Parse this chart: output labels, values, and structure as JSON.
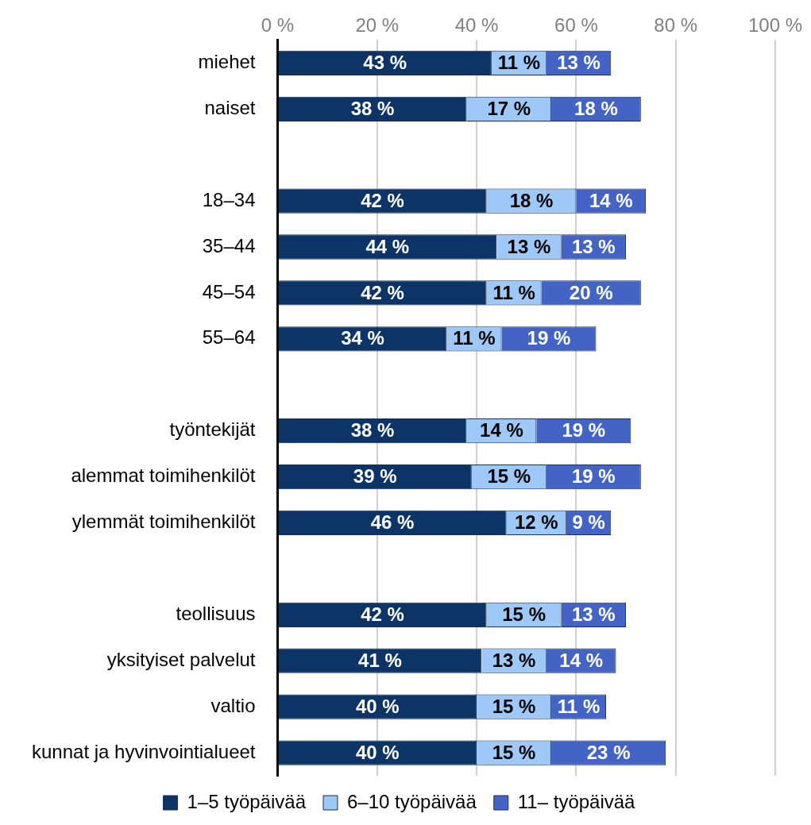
{
  "chart_data": {
    "type": "bar",
    "orientation": "horizontal",
    "stacked": true,
    "categories": [
      "miehet",
      "naiset",
      null,
      "18–34",
      "35–44",
      "45–54",
      "55–64",
      null,
      "työntekijät",
      "alemmat toimihenkilöt",
      "ylemmät toimihenkilöt",
      null,
      "teollisuus",
      "yksityiset palvelut",
      "valtio",
      "kunnat ja hyvinvointialueet"
    ],
    "series": [
      {
        "name": "1–5 työpäivää",
        "color": "#0c3466",
        "values": [
          43,
          38,
          null,
          42,
          44,
          42,
          34,
          null,
          38,
          39,
          46,
          null,
          42,
          41,
          40,
          40
        ],
        "value_labels": [
          "43 %",
          "38 %",
          null,
          "42 %",
          "44 %",
          "42 %",
          "34 %",
          null,
          "38 %",
          "39 %",
          "46 %",
          null,
          "42 %",
          "41 %",
          "40 %",
          "40 %"
        ]
      },
      {
        "name": "6–10 työpäivää",
        "color": "#9dc8f7",
        "values": [
          11,
          17,
          null,
          18,
          13,
          11,
          11,
          null,
          14,
          15,
          12,
          null,
          15,
          13,
          15,
          15
        ],
        "value_labels": [
          "11 %",
          "17 %",
          null,
          "18 %",
          "13 %",
          "11 %",
          "11 %",
          null,
          "14 %",
          "15 %",
          "12 %",
          null,
          "15 %",
          "13 %",
          "15 %",
          "15 %"
        ]
      },
      {
        "name": "11– työpäivää",
        "color": "#4363c5",
        "values": [
          13,
          18,
          null,
          14,
          13,
          20,
          19,
          null,
          19,
          19,
          9,
          null,
          13,
          14,
          11,
          23
        ],
        "value_labels": [
          "13 %",
          "18 %",
          null,
          "14 %",
          "13 %",
          "20 %",
          "19 %",
          null,
          "19 %",
          "19 %",
          "9 %",
          null,
          "13 %",
          "14 %",
          "11 %",
          "23 %"
        ]
      }
    ],
    "xlim": [
      0,
      100
    ],
    "xticks": [
      {
        "value": 0,
        "label": "0 %"
      },
      {
        "value": 20,
        "label": "20 %"
      },
      {
        "value": 40,
        "label": "40 %"
      },
      {
        "value": 60,
        "label": "60 %"
      },
      {
        "value": 80,
        "label": "80 %"
      },
      {
        "value": 100,
        "label": "100 %"
      }
    ],
    "grid": "x",
    "legend": "bottom"
  }
}
